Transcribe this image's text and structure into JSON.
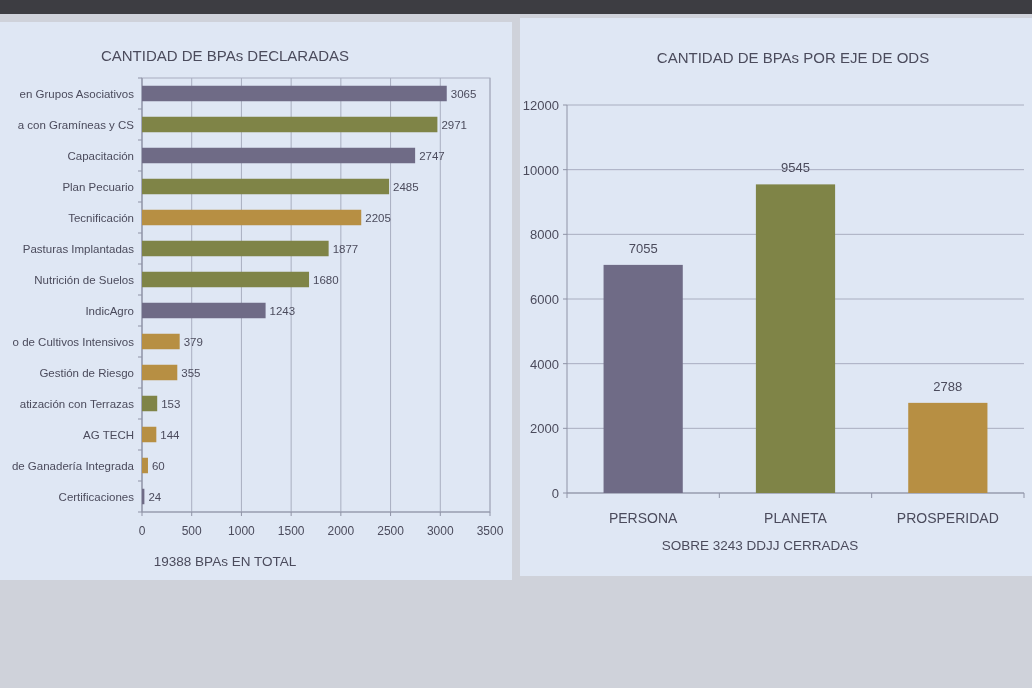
{
  "chart_data": [
    {
      "type": "bar",
      "orientation": "horizontal",
      "title": "CANTIDAD DE BPAs DECLARADAS",
      "xlabel": "19388 BPAs EN TOTAL",
      "categories": [
        "en Grupos Asociativos",
        "a con Gramíneas y CS",
        "Capacitación",
        "Plan Pecuario",
        "Tecnificación",
        "Pasturas Implantadas",
        "Nutrición de Suelos",
        "IndicAgro",
        "o de Cultivos Intensivos",
        "Gestión de Riesgo",
        "atización con Terrazas",
        "AG TECH",
        "de Ganadería Integrada",
        "Certificaciones"
      ],
      "values": [
        3065,
        2971,
        2747,
        2485,
        2205,
        1877,
        1680,
        1243,
        379,
        355,
        153,
        144,
        60,
        24
      ],
      "colors": [
        "#6f6b86",
        "#7f8447",
        "#6f6b86",
        "#7f8447",
        "#b78f43",
        "#7f8447",
        "#7f8447",
        "#6f6b86",
        "#b78f43",
        "#b78f43",
        "#7f8447",
        "#b78f43",
        "#b78f43",
        "#6f6b86"
      ],
      "xlim": [
        0,
        3500
      ],
      "xticks": [
        0,
        500,
        1000,
        1500,
        2000,
        2500,
        3000,
        3500
      ],
      "grid": "x",
      "data_labels": true
    },
    {
      "type": "bar",
      "title": "CANTIDAD DE BPAs POR EJE DE ODS",
      "xlabel": "SOBRE 3243 DDJJ CERRADAS",
      "categories": [
        "PERSONA",
        "PLANETA",
        "PROSPERIDAD"
      ],
      "values": [
        7055,
        9545,
        2788
      ],
      "colors": [
        "#6f6b86",
        "#7f8447",
        "#b78f43"
      ],
      "ylim": [
        0,
        12000
      ],
      "yticks": [
        0,
        2000,
        4000,
        6000,
        8000,
        10000,
        12000
      ],
      "grid": "y",
      "data_labels": true
    }
  ]
}
